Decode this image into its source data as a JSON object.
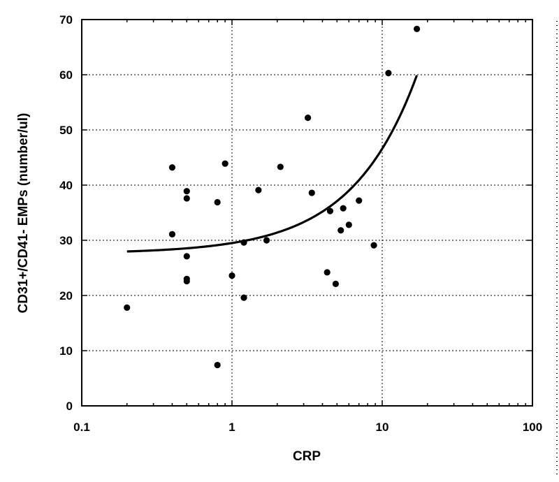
{
  "chart_data": {
    "type": "scatter",
    "xlabel": "CRP",
    "ylabel": "CD31+/CD41-  EMPs (number/ul)",
    "x_scale": "log",
    "xlim": [
      0.1,
      100
    ],
    "ylim": [
      0,
      70
    ],
    "x_ticks": [
      0.1,
      1,
      10,
      100
    ],
    "x_tick_labels": [
      "0.1",
      "1",
      "10",
      "100"
    ],
    "y_ticks": [
      0,
      10,
      20,
      30,
      40,
      50,
      60,
      70
    ],
    "y_tick_labels": [
      "0",
      "10",
      "20",
      "30",
      "40",
      "50",
      "60",
      "70"
    ],
    "grid": true,
    "points": [
      {
        "x": 0.2,
        "y": 17.8
      },
      {
        "x": 0.4,
        "y": 43.2
      },
      {
        "x": 0.4,
        "y": 31.1
      },
      {
        "x": 0.5,
        "y": 38.9
      },
      {
        "x": 0.5,
        "y": 37.6
      },
      {
        "x": 0.5,
        "y": 27.1
      },
      {
        "x": 0.5,
        "y": 23.0
      },
      {
        "x": 0.5,
        "y": 22.6
      },
      {
        "x": 0.8,
        "y": 36.9
      },
      {
        "x": 0.8,
        "y": 7.4
      },
      {
        "x": 0.9,
        "y": 43.9
      },
      {
        "x": 1.0,
        "y": 23.6
      },
      {
        "x": 1.2,
        "y": 29.6
      },
      {
        "x": 1.2,
        "y": 19.6
      },
      {
        "x": 1.5,
        "y": 39.1
      },
      {
        "x": 1.7,
        "y": 30.0
      },
      {
        "x": 2.1,
        "y": 43.3
      },
      {
        "x": 3.2,
        "y": 52.2
      },
      {
        "x": 3.4,
        "y": 38.6
      },
      {
        "x": 4.3,
        "y": 24.2
      },
      {
        "x": 4.5,
        "y": 35.3
      },
      {
        "x": 4.9,
        "y": 22.1
      },
      {
        "x": 5.3,
        "y": 31.8
      },
      {
        "x": 5.5,
        "y": 35.8
      },
      {
        "x": 6.0,
        "y": 32.8
      },
      {
        "x": 7.0,
        "y": 37.2
      },
      {
        "x": 8.8,
        "y": 29.1
      },
      {
        "x": 11.0,
        "y": 60.3
      },
      {
        "x": 17.0,
        "y": 68.3
      }
    ],
    "fit_line": {
      "type": "linear-in-x",
      "intercept": 27.6,
      "slope": 1.9,
      "x_range": [
        0.2,
        17
      ]
    }
  }
}
